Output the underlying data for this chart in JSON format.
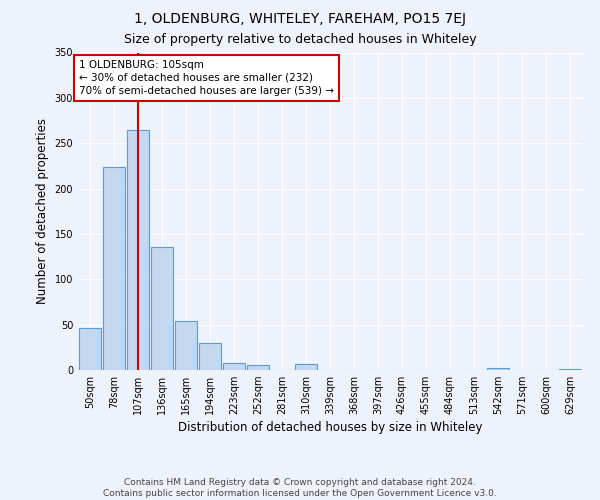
{
  "title": "1, OLDENBURG, WHITELEY, FAREHAM, PO15 7EJ",
  "subtitle": "Size of property relative to detached houses in Whiteley",
  "xlabel": "Distribution of detached houses by size in Whiteley",
  "ylabel": "Number of detached properties",
  "categories": [
    "50sqm",
    "78sqm",
    "107sqm",
    "136sqm",
    "165sqm",
    "194sqm",
    "223sqm",
    "252sqm",
    "281sqm",
    "310sqm",
    "339sqm",
    "368sqm",
    "397sqm",
    "426sqm",
    "455sqm",
    "484sqm",
    "513sqm",
    "542sqm",
    "571sqm",
    "600sqm",
    "629sqm"
  ],
  "values": [
    46,
    224,
    265,
    136,
    54,
    30,
    8,
    5,
    0,
    7,
    0,
    0,
    0,
    0,
    0,
    0,
    0,
    2,
    0,
    0,
    1
  ],
  "bar_color": "#c5d8f0",
  "bar_edge_color": "#5b9bd5",
  "vline_x": 2,
  "vline_color": "#cc0000",
  "ylim": [
    0,
    350
  ],
  "yticks": [
    0,
    50,
    100,
    150,
    200,
    250,
    300,
    350
  ],
  "annotation_text": "1 OLDENBURG: 105sqm\n← 30% of detached houses are smaller (232)\n70% of semi-detached houses are larger (539) →",
  "annotation_box_color": "#cc0000",
  "footnote": "Contains HM Land Registry data © Crown copyright and database right 2024.\nContains public sector information licensed under the Open Government Licence v3.0.",
  "bg_color": "#eef3fb",
  "plot_bg_color": "#eef3fb",
  "title_fontsize": 10,
  "subtitle_fontsize": 9,
  "label_fontsize": 8.5,
  "tick_fontsize": 7,
  "footnote_fontsize": 6.5,
  "annotation_fontsize": 7.5
}
